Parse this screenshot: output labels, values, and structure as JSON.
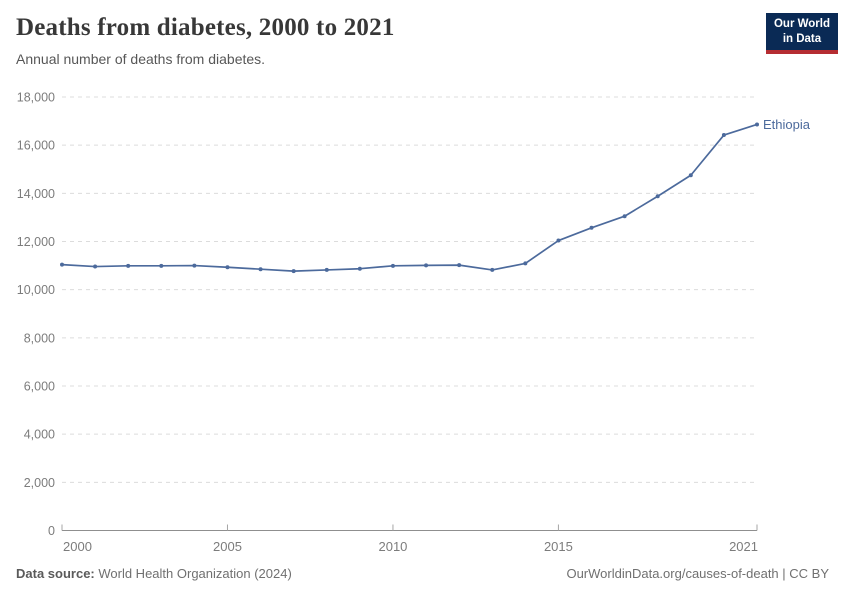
{
  "header": {
    "title": "Deaths from diabetes, 2000 to 2021",
    "subtitle": "Annual number of deaths from diabetes."
  },
  "logo": {
    "line1": "Our World",
    "line2": "in Data",
    "bg_color": "#0a2a55",
    "accent_color": "#b52d32"
  },
  "chart_data": {
    "type": "line",
    "title": "Deaths from diabetes, 2000 to 2021",
    "xlabel": "",
    "ylabel": "",
    "x": [
      2000,
      2001,
      2002,
      2003,
      2004,
      2005,
      2006,
      2007,
      2008,
      2009,
      2010,
      2011,
      2012,
      2013,
      2014,
      2015,
      2016,
      2017,
      2018,
      2019,
      2020,
      2021
    ],
    "series": [
      {
        "name": "Ethiopia",
        "color": "#4c6a9c",
        "values": [
          11040,
          10960,
          10990,
          10990,
          11000,
          10930,
          10850,
          10770,
          10820,
          10870,
          10990,
          11010,
          11020,
          10820,
          11090,
          12040,
          12570,
          13050,
          13880,
          14750,
          16420,
          16860
        ]
      }
    ],
    "xlim": [
      2000,
      2021
    ],
    "ylim": [
      0,
      18000
    ],
    "xticks": [
      2000,
      2005,
      2010,
      2015,
      2021
    ],
    "yticks": [
      0,
      2000,
      4000,
      6000,
      8000,
      10000,
      12000,
      14000,
      16000,
      18000
    ],
    "grid": "horizontal-dashed",
    "legend_position": "end-of-line-label",
    "colors": {
      "line": "#4c6a9c",
      "gridline": "#dcdcdc",
      "axis": "#8f8f8f",
      "tick_label": "#7c7c7c"
    }
  },
  "footer": {
    "source_label": "Data source:",
    "source_value": " World Health Organization (2024)",
    "credit": "OurWorldinData.org/causes-of-death | CC BY"
  }
}
